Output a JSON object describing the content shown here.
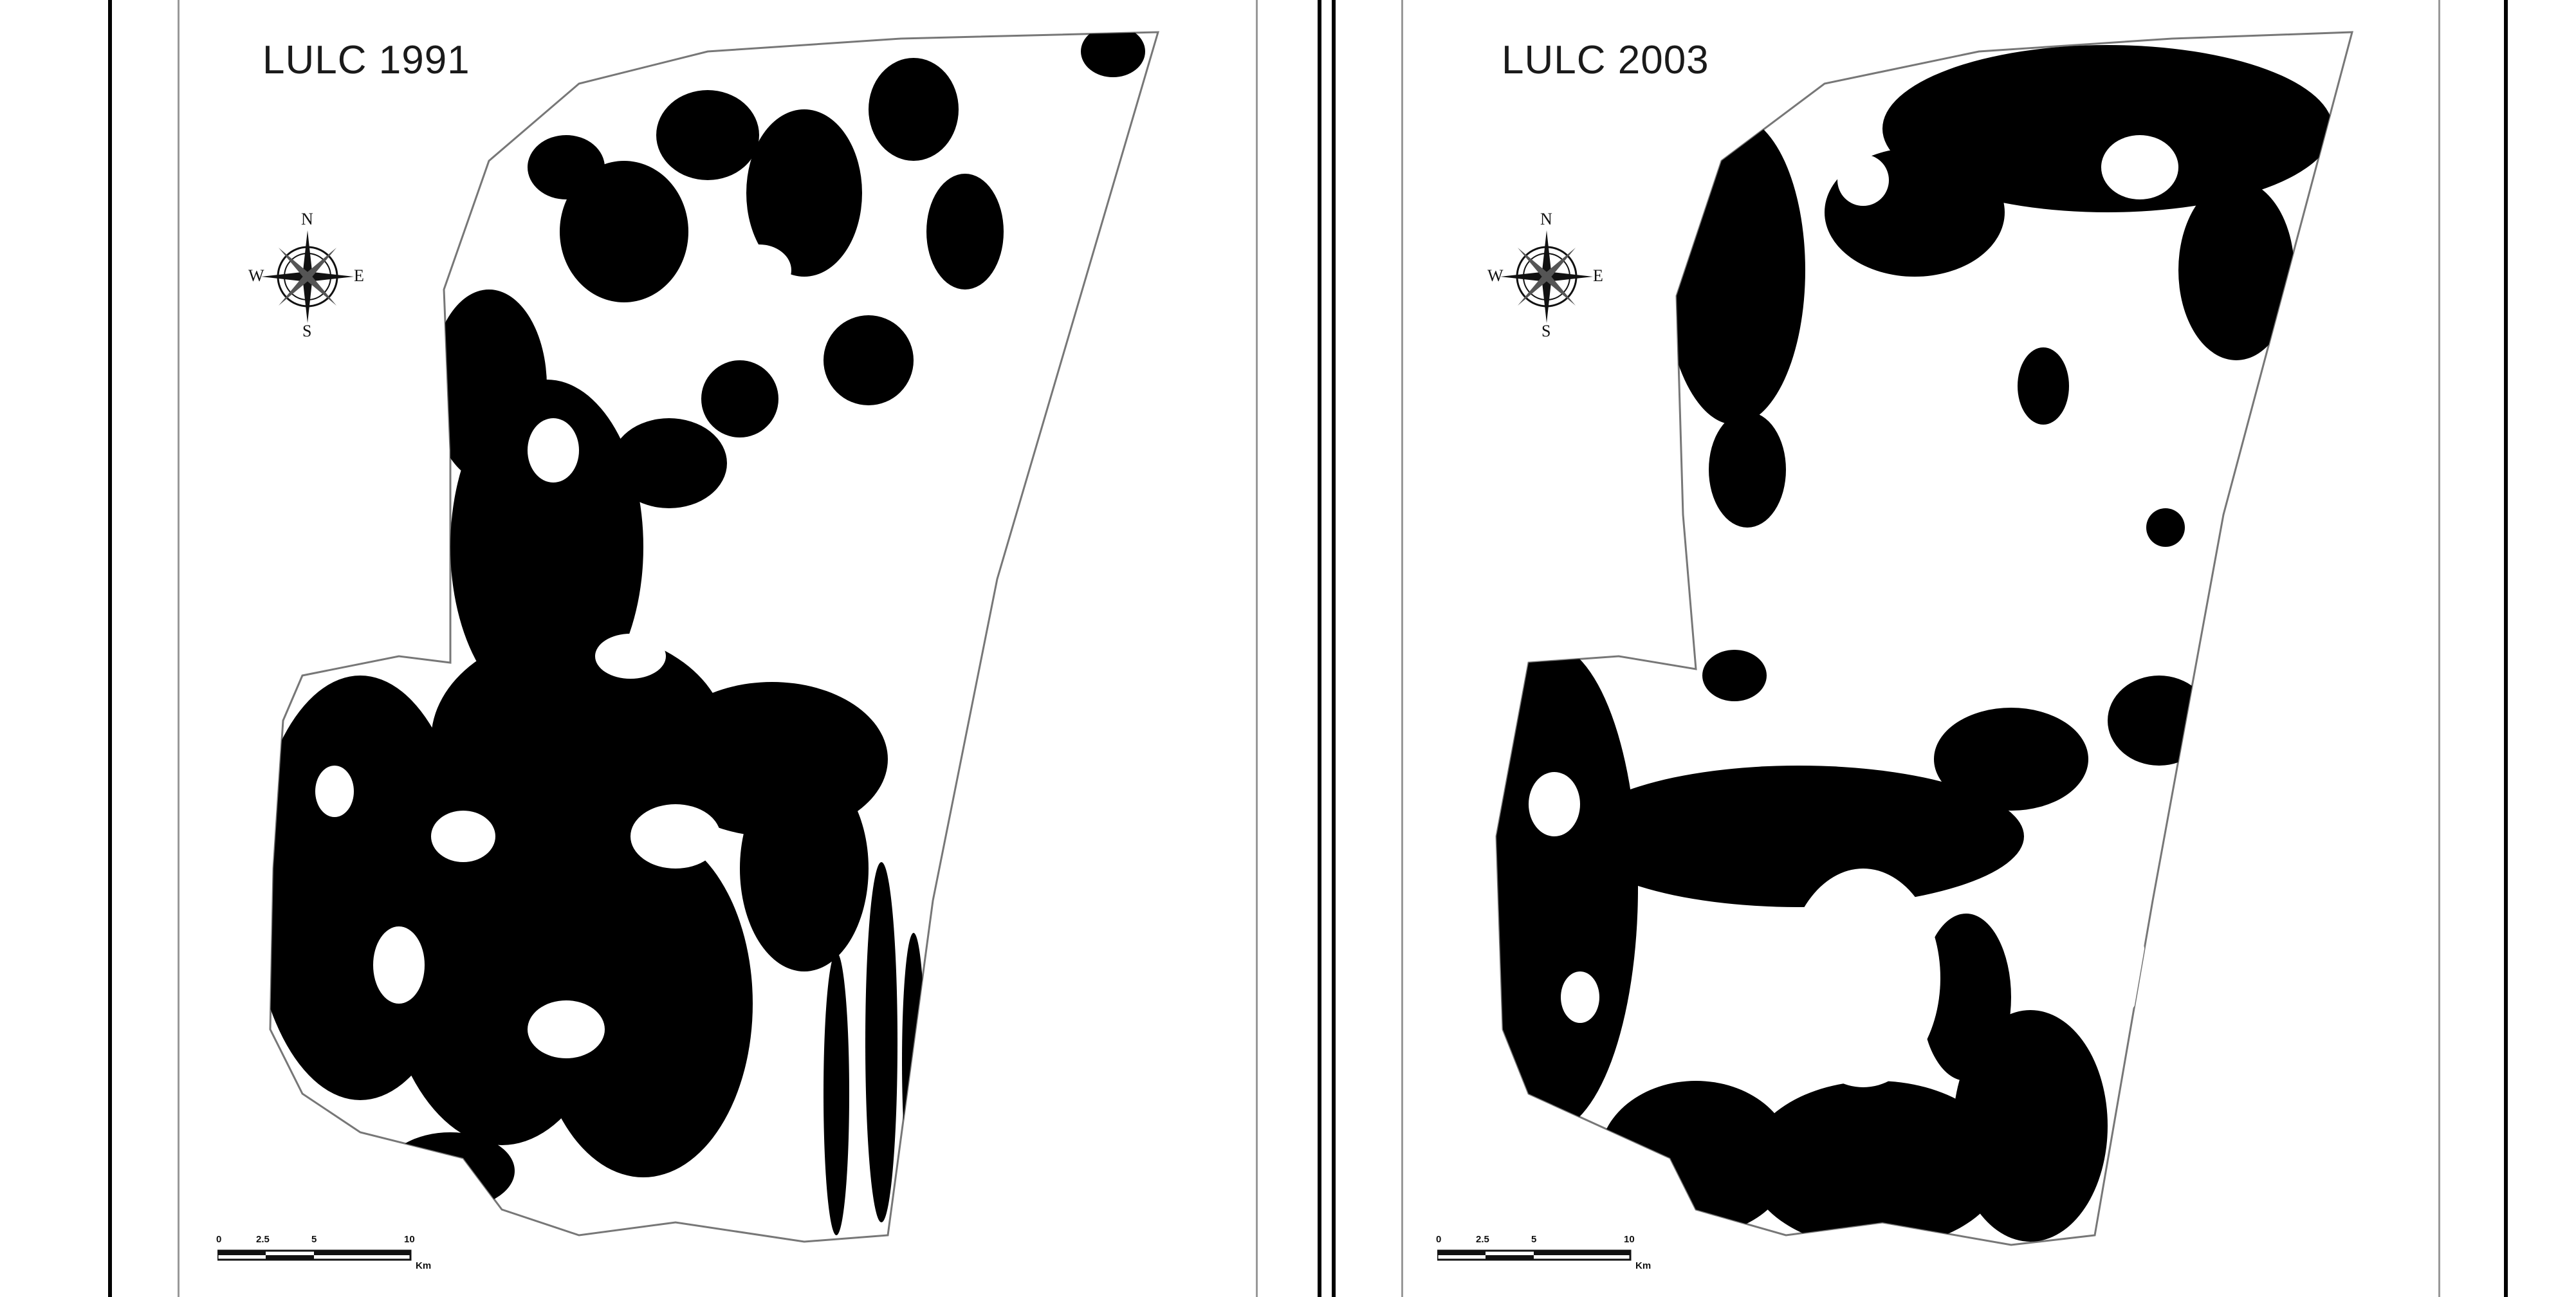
{
  "maps": [
    {
      "title": "LULC 1991",
      "compass": {
        "north": "N",
        "south": "S",
        "east": "E",
        "west": "W"
      },
      "scale": {
        "ticks": [
          "0",
          "2.5",
          "5",
          "10"
        ],
        "unit": "Km"
      }
    },
    {
      "title": "LULC 2003",
      "compass": {
        "north": "N",
        "south": "S",
        "east": "E",
        "west": "W"
      },
      "scale": {
        "ticks": [
          "0",
          "2.5",
          "5",
          "10"
        ],
        "unit": "Km"
      }
    }
  ],
  "colors": {
    "dark_cover": "#000000",
    "light_cover": "#ffffff",
    "boundary": "#888888",
    "frame": "#000000"
  }
}
